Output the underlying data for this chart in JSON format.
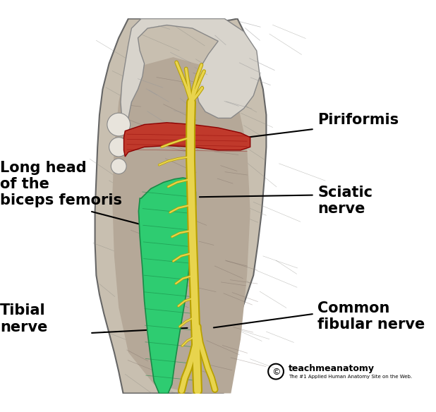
{
  "background_color": "#ffffff",
  "fig_width": 6.18,
  "fig_height": 5.84,
  "labels": {
    "piriformis": "Piriformis",
    "sciatic_nerve": "Sciatic\nnerve",
    "long_head": "Long head\nof the\nbiceps femoris",
    "tibial_nerve": "Tibial\nnerve",
    "common_fibular": "Common\nfibular nerve",
    "brand": "teachmeanatomy",
    "brand_sub": "The #1 Applied Human Anatomy Site on the Web."
  },
  "colors": {
    "piriformis_muscle": "#c0392b",
    "green_muscle": "#2ecc71",
    "yellow_nerve": "#e8d44d",
    "yellow_nerve_dark": "#b8a000",
    "body_skin": "#d8cbb8",
    "body_muscle": "#b8a898",
    "body_outline": "#444444",
    "annotation_line": "#000000",
    "label_text": "#000000"
  },
  "label_fontsize": 14,
  "ann_linewidth": 1.5
}
